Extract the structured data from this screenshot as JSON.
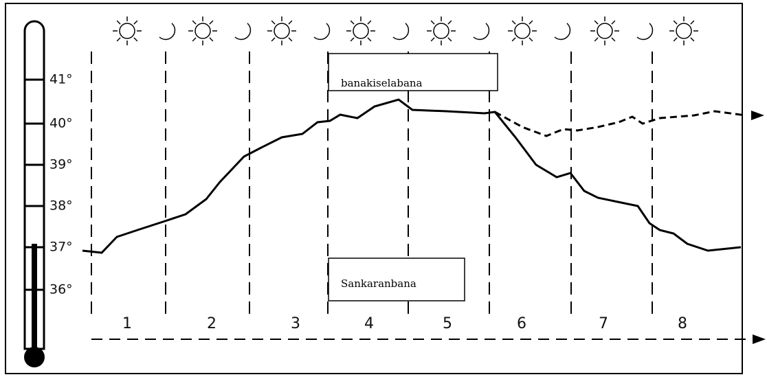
{
  "thermometer": {
    "ticks": [
      "41°",
      "40°",
      "39°",
      "38°",
      "37°",
      "36°"
    ]
  },
  "days": [
    "1",
    "2",
    "3",
    "4",
    "5",
    "6",
    "7",
    "8"
  ],
  "annotations": [
    "banakiselabana",
    "Sankaranbana"
  ]
}
